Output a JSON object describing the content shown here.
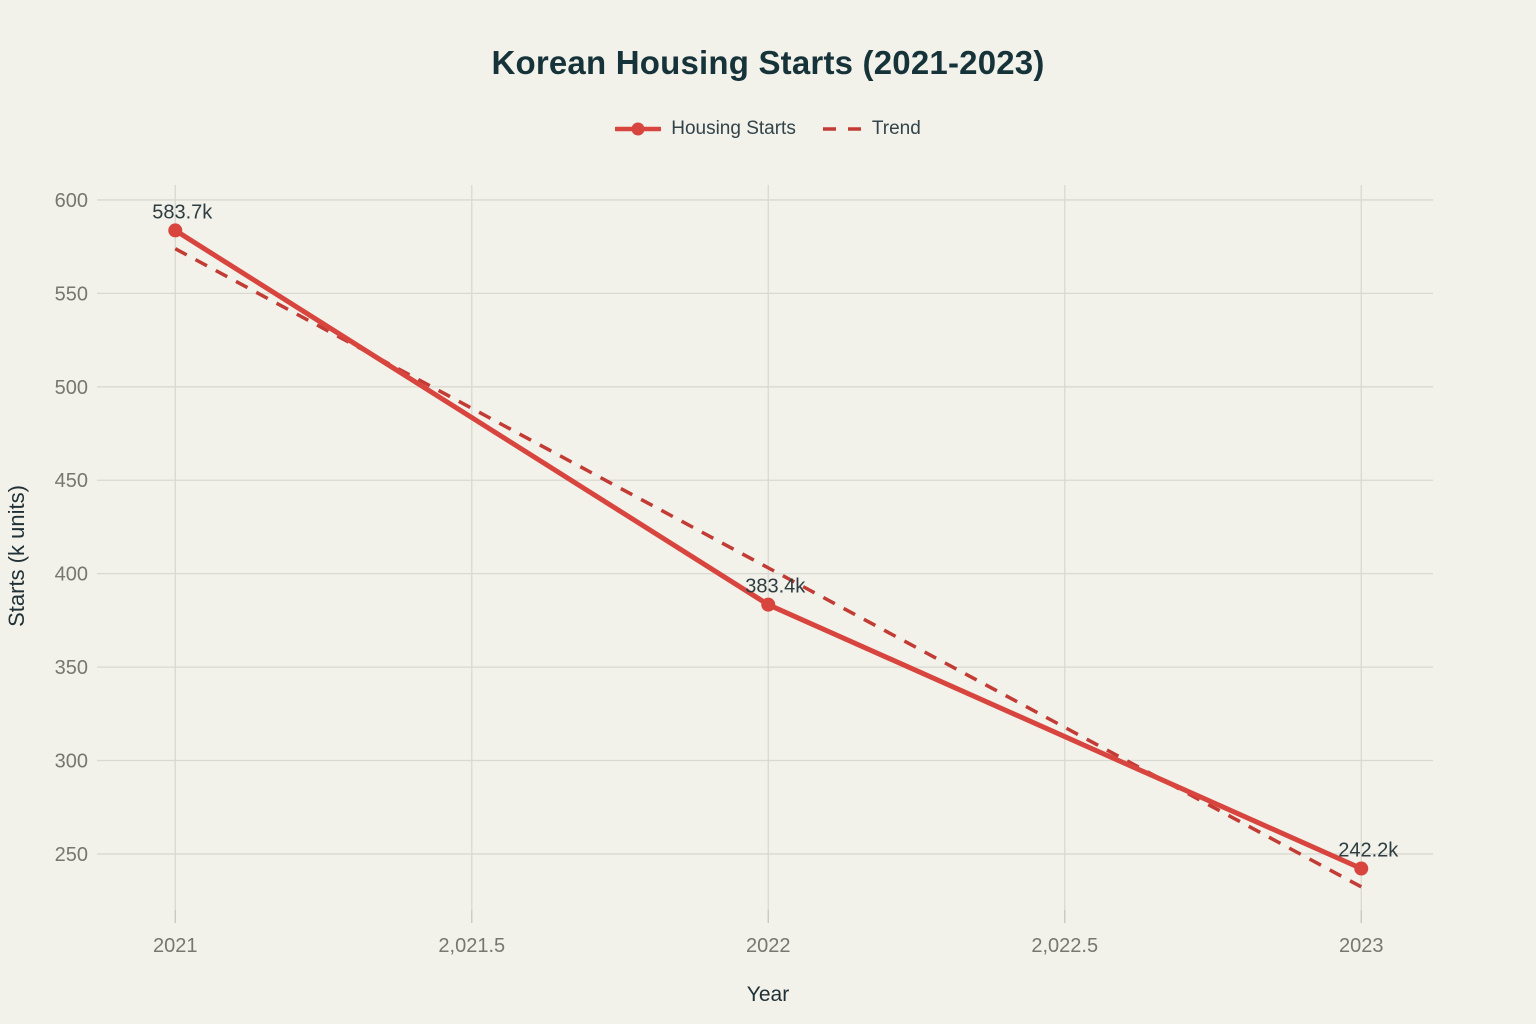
{
  "title": "Korean Housing Starts (2021-2023)",
  "legend": {
    "items": [
      {
        "label": "Housing Starts"
      },
      {
        "label": "Trend"
      }
    ]
  },
  "chart_data": {
    "type": "line",
    "title": "Korean Housing Starts (2021-2023)",
    "xlabel": "Year",
    "ylabel": "Starts (k units)",
    "x": [
      2021,
      2022,
      2023
    ],
    "series": [
      {
        "name": "Housing Starts",
        "style": "solid",
        "marker": "circle",
        "color": "#d8453f",
        "values": [
          583.7,
          383.4,
          242.2
        ],
        "point_labels": [
          "583.7k",
          "383.4k",
          "242.2k"
        ]
      },
      {
        "name": "Trend",
        "style": "dashed",
        "marker": "none",
        "color": "#c23b34",
        "values": [
          573.9,
          403.1,
          232.4
        ],
        "point_labels": []
      }
    ],
    "x_ticks": {
      "values": [
        2021,
        2021.5,
        2022,
        2022.5,
        2023
      ],
      "labels": [
        "2021",
        "2,021.5",
        "2022",
        "2,022.5",
        "2023"
      ]
    },
    "y_ticks": {
      "values": [
        250,
        300,
        350,
        400,
        450,
        500,
        550,
        600
      ],
      "labels": [
        "250",
        "300",
        "350",
        "400",
        "450",
        "500",
        "550",
        "600"
      ]
    },
    "xlim": [
      2020.868,
      2023.121
    ],
    "ylim": [
      220,
      608
    ],
    "grid": true,
    "legend_position": "top",
    "colors": {
      "background": "#f2f1ea",
      "grid": "#d8d9d0",
      "tick": "#c6c7bc",
      "title": "#17333a",
      "axis_title": "#1f3136",
      "tick_label": "#77776f",
      "data_label": "#2e3d42",
      "legend_label": "#32444a"
    }
  }
}
